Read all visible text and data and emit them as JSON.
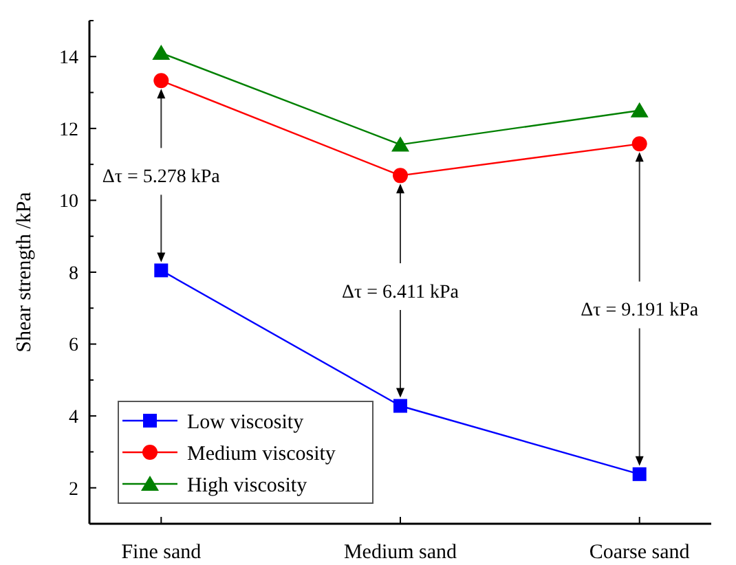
{
  "chart_data": {
    "type": "line",
    "ylabel": "Shear strength /kPa",
    "categories": [
      "Fine sand",
      "Medium sand",
      "Coarse sand"
    ],
    "series": [
      {
        "name": "Low viscosity",
        "color": "#0000ff",
        "marker": "square",
        "values": [
          8.05,
          4.28,
          2.38
        ]
      },
      {
        "name": "Medium viscosity",
        "color": "#ff0000",
        "marker": "circle",
        "values": [
          13.33,
          10.69,
          11.57
        ]
      },
      {
        "name": "High viscosity",
        "color": "#008000",
        "marker": "triangle",
        "values": [
          14.1,
          11.55,
          12.5
        ]
      }
    ],
    "ylim": [
      1,
      15
    ],
    "yticks": [
      {
        "value": 1,
        "label": null
      },
      2,
      {
        "value": 3,
        "label": null
      },
      4,
      {
        "value": 5,
        "label": null
      },
      6,
      {
        "value": 7,
        "label": null
      },
      8,
      {
        "value": 9,
        "label": null
      },
      10,
      {
        "value": 11,
        "label": null
      },
      12,
      {
        "value": 13,
        "label": null
      },
      14,
      {
        "value": 15,
        "label": null
      }
    ],
    "legend": "bottom left",
    "grid": false,
    "annotations": [
      "Δτ = 5.278 kPa",
      "Δτ = 6.411 kPa",
      "Δτ = 9.191 kPa"
    ]
  }
}
